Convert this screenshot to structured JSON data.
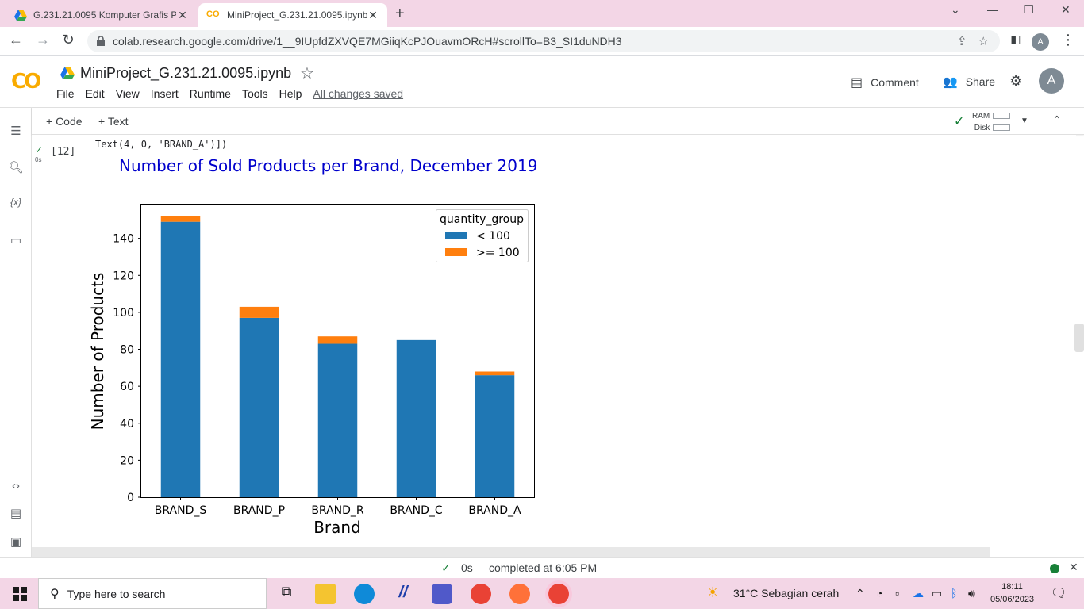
{
  "browser": {
    "tabs": [
      {
        "title": "G.231.21.0095 Komputer Grafis P"
      },
      {
        "title": "MiniProject_G.231.21.0095.ipynb"
      }
    ],
    "url": "colab.research.google.com/drive/1__9IUpfdZXVQE7MGiiqKcPJOuavmORcH#scrollTo=B3_SI1duNDH3",
    "profile_letter": "A"
  },
  "colab": {
    "logo": "CO",
    "notebook_title": "MiniProject_G.231.21.0095.ipynb",
    "menu": [
      "File",
      "Edit",
      "View",
      "Insert",
      "Runtime",
      "Tools",
      "Help"
    ],
    "saved_status": "All changes saved",
    "comment_label": "Comment",
    "share_label": "Share",
    "avatar_letter": "A",
    "toolbar": {
      "code_label": "+ Code",
      "text_label": "+ Text",
      "ram_label": "RAM",
      "disk_label": "Disk"
    }
  },
  "cell": {
    "exec_count": "[12]",
    "exec_time": "0s",
    "output_text": "Text(4, 0, 'BRAND_A')])"
  },
  "chart_data": {
    "type": "bar",
    "stacked": true,
    "title": "Number of Sold Products per Brand, December 2019",
    "xlabel": "Brand",
    "ylabel": "Number of Products",
    "categories": [
      "BRAND_S",
      "BRAND_P",
      "BRAND_R",
      "BRAND_C",
      "BRAND_A"
    ],
    "series": [
      {
        "name": "< 100",
        "values": [
          149,
          97,
          83,
          85,
          66
        ],
        "color": "#1f77b4"
      },
      {
        "name": ">= 100",
        "values": [
          3,
          6,
          4,
          0,
          2
        ],
        "color": "#ff7f0e"
      }
    ],
    "ylim": [
      0,
      160
    ],
    "yticks": [
      0,
      20,
      40,
      60,
      80,
      100,
      120,
      140
    ],
    "legend_title": "quantity_group",
    "legend_position": "top-right",
    "title_color": "#0000cc"
  },
  "status": {
    "time": "0s",
    "message": "completed at 6:05 PM"
  },
  "taskbar": {
    "search_placeholder": "Type here to search",
    "weather": "31°C  Sebagian cerah",
    "time": "18:11",
    "date": "05/06/2023"
  }
}
